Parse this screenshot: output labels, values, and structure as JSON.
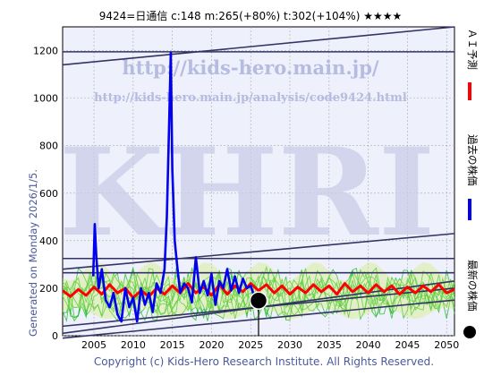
{
  "header": {
    "title": "9424=日通信 c:148 m:265(+80%) t:302(+104%) ★★★★"
  },
  "side_note": "Generated on Monday 2026/1/5.",
  "footer": {
    "copyright": "Copyright (c) Kids-Hero Research Institute. All Rights Reserved."
  },
  "watermarks": {
    "url_main": "http://kids-hero.main.jp/",
    "url_analysis": "http://kids-hero.main.jp/analysis/code9424.html",
    "logo": "KHRI"
  },
  "legend": [
    {
      "label": "ＡＩ予測",
      "color": "#ff0000",
      "kind": "bar"
    },
    {
      "label": "過去の株価",
      "color": "#0000ee",
      "kind": "bar"
    },
    {
      "label": "最新の株価",
      "color": "#000000",
      "kind": "dot"
    }
  ],
  "colors": {
    "price": "#0000ee",
    "prediction": "#ff0000",
    "band": "#22bb22",
    "trend": "#333366",
    "grid": "#aaaaaa"
  },
  "chart_data": {
    "type": "line",
    "xlim": [
      2001,
      2051
    ],
    "ylim": [
      0,
      1300
    ],
    "xticks": [
      2005,
      2010,
      2015,
      2020,
      2025,
      2030,
      2035,
      2040,
      2045,
      2050
    ],
    "yticks": [
      0,
      200,
      400,
      600,
      800,
      1000,
      1200
    ],
    "latest_price": {
      "x": 2026.0,
      "y": 148
    },
    "trend_lines": [
      {
        "x": [
          2001,
          2051
        ],
        "y": [
          1140,
          1300
        ]
      },
      {
        "x": [
          2001,
          2051
        ],
        "y": [
          1195,
          1195
        ]
      },
      {
        "x": [
          2001,
          2051
        ],
        "y": [
          280,
          430
        ]
      },
      {
        "x": [
          2001,
          2051
        ],
        "y": [
          325,
          325
        ]
      },
      {
        "x": [
          2001,
          2051
        ],
        "y": [
          265,
          265
        ]
      },
      {
        "x": [
          2001,
          2051
        ],
        "y": [
          10,
          230
        ]
      },
      {
        "x": [
          2001,
          2051
        ],
        "y": [
          40,
          200
        ]
      },
      {
        "x": [
          2001,
          2051
        ],
        "y": [
          -10,
          150
        ]
      }
    ],
    "series": [
      {
        "name": "過去の株価",
        "x": [
          2004.9,
          2005.1,
          2005.3,
          2005.6,
          2006.0,
          2006.5,
          2007.0,
          2007.5,
          2008.0,
          2008.5,
          2009.0,
          2009.5,
          2010.0,
          2010.5,
          2011.0,
          2011.5,
          2012.0,
          2012.5,
          2013.0,
          2013.5,
          2014.0,
          2014.3,
          2014.6,
          2014.8,
          2015.0,
          2015.3,
          2015.6,
          2016.0,
          2016.5,
          2017.0,
          2017.5,
          2018.0,
          2018.5,
          2019.0,
          2019.5,
          2020.0,
          2020.5,
          2021.0,
          2021.5,
          2022.0,
          2022.5,
          2023.0,
          2023.5,
          2024.0,
          2024.5,
          2025.0,
          2025.5,
          2026.0
        ],
        "y": [
          250,
          470,
          330,
          200,
          280,
          150,
          120,
          180,
          90,
          60,
          200,
          120,
          160,
          60,
          200,
          130,
          180,
          100,
          220,
          180,
          280,
          500,
          900,
          1190,
          700,
          400,
          300,
          180,
          220,
          200,
          140,
          330,
          180,
          230,
          170,
          260,
          130,
          230,
          200,
          280,
          190,
          250,
          180,
          240,
          200,
          210,
          160,
          148
        ]
      },
      {
        "name": "ＡＩ予測",
        "x": [
          2001,
          2002,
          2003,
          2004,
          2005,
          2006,
          2007,
          2008,
          2009,
          2010,
          2011,
          2012,
          2013,
          2014,
          2015,
          2016,
          2017,
          2018,
          2019,
          2020,
          2021,
          2022,
          2023,
          2024,
          2025,
          2026,
          2027,
          2028,
          2029,
          2030,
          2031,
          2032,
          2033,
          2034,
          2035,
          2036,
          2037,
          2038,
          2039,
          2040,
          2041,
          2042,
          2043,
          2044,
          2045,
          2046,
          2047,
          2048,
          2049,
          2050,
          2051
        ],
        "y": [
          190,
          165,
          195,
          170,
          205,
          175,
          215,
          180,
          200,
          160,
          190,
          165,
          200,
          175,
          210,
          180,
          220,
          180,
          205,
          170,
          215,
          175,
          210,
          185,
          220,
          190,
          215,
          180,
          210,
          175,
          205,
          180,
          215,
          185,
          210,
          175,
          220,
          185,
          210,
          180,
          215,
          185,
          210,
          175,
          205,
          180,
          210,
          185,
          215,
          180,
          195
        ]
      }
    ],
    "band_hint": "green prediction band around 80–320 from 2001 to 2051"
  }
}
